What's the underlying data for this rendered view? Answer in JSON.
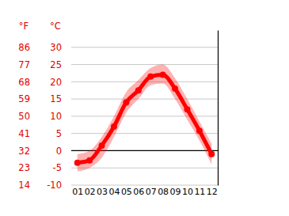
{
  "chart_data": {
    "type": "line",
    "ylabel": "°C",
    "y2label": "°F",
    "categories": [
      "01",
      "02",
      "03",
      "04",
      "05",
      "06",
      "07",
      "08",
      "09",
      "10",
      "11",
      "12"
    ],
    "series": [
      {
        "color": "#ff0000",
        "marker": "circle",
        "values": [
          -3.5,
          -2.8,
          1.5,
          7,
          14,
          17.5,
          21.5,
          22,
          18,
          12,
          5.8,
          -1
        ],
        "low": [
          -6,
          -5,
          -2,
          4,
          11,
          15,
          19,
          19.5,
          15,
          9,
          3,
          -4
        ],
        "high": [
          -1,
          0,
          4,
          10,
          17,
          20.5,
          24,
          25,
          21,
          15,
          8.5,
          2
        ]
      }
    ],
    "ylim": [
      -10,
      35
    ],
    "yticks": [
      -10,
      -5,
      0,
      5,
      10,
      15,
      20,
      25,
      30
    ],
    "y2lim": [
      14,
      95
    ],
    "y2ticks": [
      14,
      23,
      32,
      41,
      50,
      59,
      68,
      77,
      86
    ],
    "grid": true
  }
}
